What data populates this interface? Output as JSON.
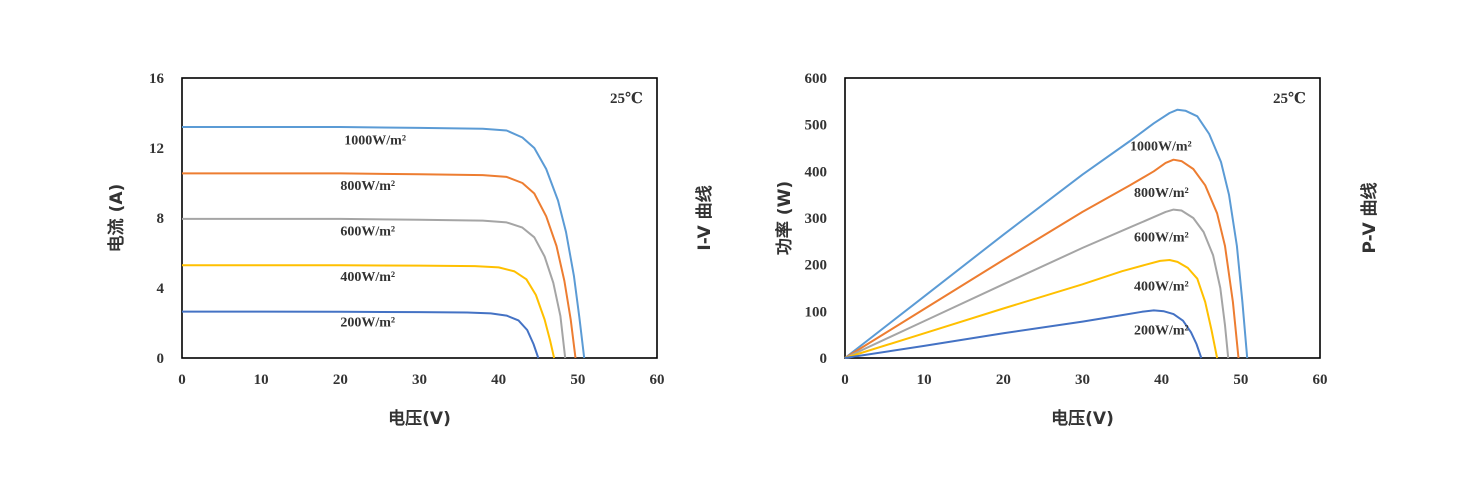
{
  "colors": {
    "1000": "#5b9bd5",
    "800": "#ed7d31",
    "600": "#a5a5a5",
    "400": "#ffc000",
    "200": "#4472c4",
    "axis": "#000000",
    "text": "#333333"
  },
  "chart_data": [
    {
      "type": "line",
      "annotation": "25℃",
      "side_label": "I-V 曲线",
      "xlabel": "电压(V)",
      "ylabel": "电流 (A)",
      "xlim": [
        0,
        60
      ],
      "ylim": [
        0,
        16
      ],
      "xticks": [
        "0",
        "10",
        "20",
        "30",
        "40",
        "50",
        "60"
      ],
      "yticks": [
        "0",
        "4",
        "8",
        "12",
        "16"
      ],
      "grid": false,
      "series": [
        {
          "name": "1000W/m²",
          "key": "1000",
          "label_pos": [
            20.5,
            12.2
          ],
          "points": [
            [
              0,
              13.2
            ],
            [
              10,
              13.2
            ],
            [
              20,
              13.2
            ],
            [
              30,
              13.15
            ],
            [
              38,
              13.1
            ],
            [
              41,
              13.0
            ],
            [
              43,
              12.6
            ],
            [
              44.5,
              12.0
            ],
            [
              46,
              10.8
            ],
            [
              47.5,
              9.0
            ],
            [
              48.5,
              7.2
            ],
            [
              49.5,
              4.7
            ],
            [
              50.2,
              2.3
            ],
            [
              50.8,
              0
            ]
          ]
        },
        {
          "name": "800W/m²",
          "key": "800",
          "label_pos": [
            20.0,
            9.6
          ],
          "points": [
            [
              0,
              10.55
            ],
            [
              10,
              10.55
            ],
            [
              20,
              10.55
            ],
            [
              30,
              10.5
            ],
            [
              38,
              10.45
            ],
            [
              41,
              10.35
            ],
            [
              43,
              10.0
            ],
            [
              44.5,
              9.4
            ],
            [
              46,
              8.1
            ],
            [
              47.3,
              6.4
            ],
            [
              48.3,
              4.4
            ],
            [
              49.1,
              2.2
            ],
            [
              49.7,
              0
            ]
          ]
        },
        {
          "name": "600W/m²",
          "key": "600",
          "label_pos": [
            20.0,
            7.0
          ],
          "points": [
            [
              0,
              7.95
            ],
            [
              10,
              7.95
            ],
            [
              20,
              7.95
            ],
            [
              30,
              7.9
            ],
            [
              38,
              7.85
            ],
            [
              41,
              7.75
            ],
            [
              43,
              7.45
            ],
            [
              44.5,
              6.9
            ],
            [
              45.8,
              5.8
            ],
            [
              46.9,
              4.3
            ],
            [
              47.8,
              2.4
            ],
            [
              48.4,
              0
            ]
          ]
        },
        {
          "name": "400W/m²",
          "key": "400",
          "label_pos": [
            20.0,
            4.4
          ],
          "points": [
            [
              0,
              5.3
            ],
            [
              10,
              5.3
            ],
            [
              20,
              5.3
            ],
            [
              30,
              5.28
            ],
            [
              37,
              5.25
            ],
            [
              40,
              5.18
            ],
            [
              42,
              4.95
            ],
            [
              43.5,
              4.5
            ],
            [
              44.7,
              3.6
            ],
            [
              45.8,
              2.2
            ],
            [
              46.5,
              1.0
            ],
            [
              47.0,
              0
            ]
          ]
        },
        {
          "name": "200W/m²",
          "key": "200",
          "label_pos": [
            20.0,
            1.8
          ],
          "points": [
            [
              0,
              2.65
            ],
            [
              10,
              2.65
            ],
            [
              20,
              2.64
            ],
            [
              30,
              2.62
            ],
            [
              36,
              2.6
            ],
            [
              39,
              2.55
            ],
            [
              41,
              2.42
            ],
            [
              42.5,
              2.15
            ],
            [
              43.6,
              1.6
            ],
            [
              44.4,
              0.8
            ],
            [
              45.0,
              0
            ]
          ]
        }
      ]
    },
    {
      "type": "line",
      "annotation": "25℃",
      "side_label": "P-V 曲线",
      "xlabel": "电压(V)",
      "ylabel": "功率 (W)",
      "xlim": [
        0,
        60
      ],
      "ylim": [
        0,
        600
      ],
      "xticks": [
        "0",
        "10",
        "20",
        "30",
        "40",
        "50",
        "60"
      ],
      "yticks": [
        "0",
        "100",
        "200",
        "300",
        "400",
        "500",
        "600"
      ],
      "grid": false,
      "series": [
        {
          "name": "1000W/m²",
          "key": "1000",
          "label_pos": [
            36.0,
            445
          ],
          "points": [
            [
              0,
              0
            ],
            [
              10,
              132
            ],
            [
              20,
              264
            ],
            [
              30,
              393
            ],
            [
              36,
              465
            ],
            [
              39,
              503
            ],
            [
              41,
              525
            ],
            [
              42,
              532
            ],
            [
              43,
              530
            ],
            [
              44.5,
              518
            ],
            [
              46,
              480
            ],
            [
              47.5,
              420
            ],
            [
              48.5,
              350
            ],
            [
              49.5,
              240
            ],
            [
              50.2,
              120
            ],
            [
              50.8,
              0
            ]
          ]
        },
        {
          "name": "800W/m²",
          "key": "800",
          "label_pos": [
            36.5,
            345
          ],
          "points": [
            [
              0,
              0
            ],
            [
              10,
              105
            ],
            [
              20,
              210
            ],
            [
              30,
              313
            ],
            [
              36,
              370
            ],
            [
              39,
              400
            ],
            [
              40.5,
              418
            ],
            [
              41.5,
              425
            ],
            [
              42.5,
              422
            ],
            [
              44,
              405
            ],
            [
              45.5,
              370
            ],
            [
              47,
              310
            ],
            [
              48,
              240
            ],
            [
              49,
              120
            ],
            [
              49.7,
              0
            ]
          ]
        },
        {
          "name": "600W/m²",
          "key": "600",
          "label_pos": [
            36.5,
            250
          ],
          "points": [
            [
              0,
              0
            ],
            [
              10,
              79
            ],
            [
              20,
              158
            ],
            [
              30,
              236
            ],
            [
              36,
              280
            ],
            [
              39,
              302
            ],
            [
              40.5,
              313
            ],
            [
              41.5,
              318
            ],
            [
              42.5,
              316
            ],
            [
              44,
              300
            ],
            [
              45.3,
              270
            ],
            [
              46.5,
              220
            ],
            [
              47.4,
              150
            ],
            [
              48.0,
              70
            ],
            [
              48.4,
              0
            ]
          ]
        },
        {
          "name": "400W/m²",
          "key": "400",
          "label_pos": [
            36.5,
            145
          ],
          "points": [
            [
              0,
              0
            ],
            [
              10,
              53
            ],
            [
              20,
              106
            ],
            [
              30,
              158
            ],
            [
              35,
              186
            ],
            [
              38,
              200
            ],
            [
              39.8,
              208
            ],
            [
              41,
              210
            ],
            [
              42,
              206
            ],
            [
              43.3,
              193
            ],
            [
              44.5,
              170
            ],
            [
              45.5,
              120
            ],
            [
              46.3,
              60
            ],
            [
              47.0,
              0
            ]
          ]
        },
        {
          "name": "200W/m²",
          "key": "200",
          "label_pos": [
            36.5,
            50
          ],
          "points": [
            [
              0,
              0
            ],
            [
              10,
              26
            ],
            [
              20,
              53
            ],
            [
              30,
              78
            ],
            [
              35,
              92
            ],
            [
              37.5,
              99
            ],
            [
              39,
              102
            ],
            [
              40.3,
              100
            ],
            [
              41.5,
              94
            ],
            [
              42.7,
              80
            ],
            [
              43.7,
              55
            ],
            [
              44.4,
              30
            ],
            [
              45.0,
              0
            ]
          ]
        }
      ]
    }
  ]
}
